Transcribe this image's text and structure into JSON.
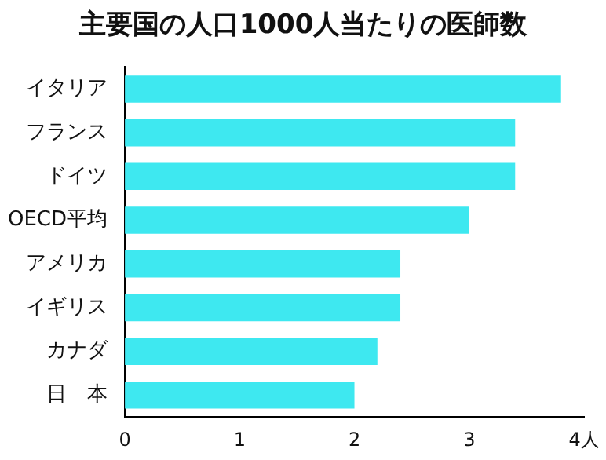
{
  "chart_data": {
    "type": "bar",
    "orientation": "horizontal",
    "title": "主要国の人口1000人当たりの医師数",
    "categories": [
      "イタリア",
      "フランス",
      "ドイツ",
      "OECD平均",
      "アメリカ",
      "イギリス",
      "カナダ",
      "日　本"
    ],
    "values": [
      3.8,
      3.4,
      3.4,
      3.0,
      2.4,
      2.4,
      2.2,
      2.0
    ],
    "color": "#3ee8f0",
    "xlim": [
      0,
      4
    ],
    "xticks": [
      0,
      1,
      2,
      3,
      {
        "value": 4,
        "label": "4人"
      }
    ],
    "grid": false,
    "legend": false
  }
}
